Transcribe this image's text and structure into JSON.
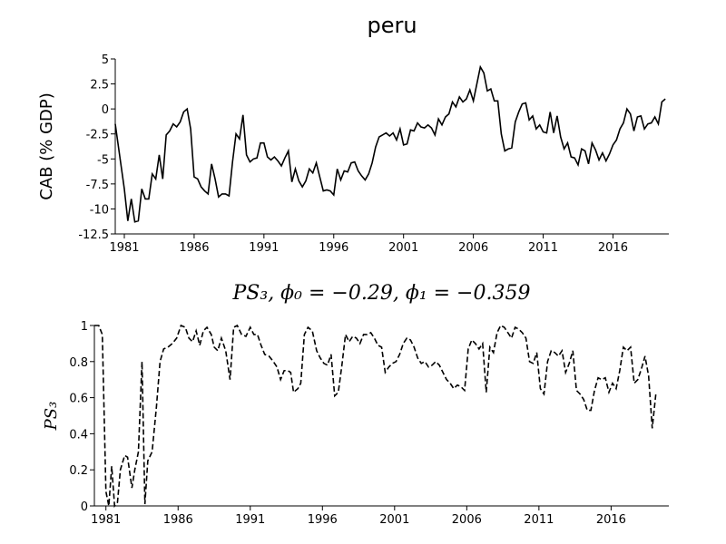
{
  "chart_data": [
    {
      "type": "line",
      "title": "peru",
      "ylabel": "CAB (% GDP)",
      "color": "#000000",
      "linestyle": "solid",
      "xlim": [
        1980.35,
        2020
      ],
      "xticks": [
        1981,
        1986,
        1991,
        1996,
        2001,
        2006,
        2011,
        2016
      ],
      "ylim": [
        -12.5,
        5
      ],
      "yticks": [
        -12.5,
        -10,
        -7.5,
        -5,
        -2.5,
        0,
        2.5,
        5
      ],
      "x": [
        1980.35,
        1980.75,
        1981,
        1981.25,
        1981.5,
        1981.75,
        1982,
        1982.25,
        1982.5,
        1982.75,
        1983,
        1983.25,
        1983.5,
        1983.75,
        1984,
        1984.25,
        1984.5,
        1984.75,
        1985,
        1985.25,
        1985.5,
        1985.75,
        1986,
        1986.25,
        1986.5,
        1986.75,
        1987,
        1987.25,
        1987.5,
        1987.75,
        1988,
        1988.25,
        1988.5,
        1988.75,
        1989,
        1989.25,
        1989.5,
        1989.75,
        1990,
        1990.25,
        1990.5,
        1990.75,
        1991,
        1991.25,
        1991.5,
        1991.75,
        1992,
        1992.25,
        1992.5,
        1992.75,
        1993,
        1993.25,
        1993.5,
        1993.75,
        1994,
        1994.25,
        1994.5,
        1994.75,
        1995,
        1995.25,
        1995.5,
        1995.75,
        1996,
        1996.25,
        1996.5,
        1996.75,
        1997,
        1997.25,
        1997.5,
        1997.75,
        1998,
        1998.25,
        1998.5,
        1998.75,
        1999,
        1999.25,
        1999.5,
        1999.75,
        2000,
        2000.25,
        2000.5,
        2000.75,
        2001,
        2001.25,
        2001.5,
        2001.75,
        2002,
        2002.25,
        2002.5,
        2002.75,
        2003,
        2003.25,
        2003.5,
        2003.75,
        2004,
        2004.25,
        2004.5,
        2004.75,
        2005,
        2005.25,
        2005.5,
        2005.75,
        2006,
        2006.25,
        2006.5,
        2006.75,
        2007,
        2007.25,
        2007.5,
        2007.75,
        2008,
        2008.25,
        2008.5,
        2008.75,
        2009,
        2009.25,
        2009.5,
        2009.75,
        2010,
        2010.25,
        2010.5,
        2010.75,
        2011,
        2011.25,
        2011.5,
        2011.75,
        2012,
        2012.25,
        2012.5,
        2012.75,
        2013,
        2013.25,
        2013.5,
        2013.75,
        2014,
        2014.25,
        2014.5,
        2014.75,
        2015,
        2015.25,
        2015.5,
        2015.75,
        2016,
        2016.25,
        2016.5,
        2016.75,
        2017,
        2017.25,
        2017.5,
        2017.75,
        2018,
        2018.25,
        2018.5,
        2018.75,
        2019,
        2019.25,
        2019.5,
        2019.75
      ],
      "values": [
        -1.5,
        -5.5,
        -8,
        -11.2,
        -9,
        -11.3,
        -11.2,
        -8,
        -9,
        -9,
        -6.5,
        -7,
        -4.6,
        -7,
        -2.6,
        -2.2,
        -1.5,
        -1.8,
        -1.3,
        -0.3,
        0,
        -2,
        -6.8,
        -7,
        -7.8,
        -8.2,
        -8.5,
        -5.5,
        -7,
        -8.8,
        -8.5,
        -8.5,
        -8.7,
        -5.3,
        -2.5,
        -3,
        -0.6,
        -4.6,
        -5.3,
        -5,
        -4.9,
        -3.4,
        -3.4,
        -4.8,
        -5.1,
        -4.8,
        -5.2,
        -5.7,
        -4.9,
        -4.2,
        -7.3,
        -6,
        -7.2,
        -7.8,
        -7.2,
        -6,
        -6.4,
        -5.4,
        -6.8,
        -8.2,
        -8.1,
        -8.2,
        -8.6,
        -6,
        -7.1,
        -6.2,
        -6.3,
        -5.4,
        -5.3,
        -6.2,
        -6.7,
        -7.1,
        -6.5,
        -5.4,
        -3.8,
        -2.8,
        -2.6,
        -2.4,
        -2.7,
        -2.4,
        -3.1,
        -2,
        -3.6,
        -3.5,
        -2.1,
        -2.2,
        -1.4,
        -1.8,
        -1.9,
        -1.6,
        -1.9,
        -2.6,
        -1,
        -1.6,
        -0.8,
        -0.5,
        0.7,
        0.2,
        1.2,
        0.7,
        1,
        1.9,
        0.8,
        2.5,
        4.2,
        3.6,
        1.8,
        2,
        0.8,
        0.8,
        -2.5,
        -4.2,
        -4,
        -3.9,
        -1.3,
        -0.3,
        0.5,
        0.6,
        -1.1,
        -0.7,
        -2,
        -1.6,
        -2.3,
        -2.4,
        -0.3,
        -2.4,
        -0.7,
        -2.8,
        -4,
        -3.4,
        -4.8,
        -4.9,
        -5.6,
        -4,
        -4.2,
        -5.5,
        -3.4,
        -4.1,
        -5.1,
        -4.4,
        -5.2,
        -4.5,
        -3.6,
        -3.1,
        -2,
        -1.4,
        0,
        -0.5,
        -2.2,
        -0.8,
        -0.7,
        -2,
        -1.5,
        -1.4,
        -0.8,
        -1.5,
        0.7,
        1
      ]
    },
    {
      "type": "line",
      "title": "PS₃, ϕ₀ = −0.29, ϕ₁ = −0.359",
      "ylabel": "PS₃",
      "color": "#000000",
      "linestyle": "dashed",
      "xlim": [
        1980.2,
        2020
      ],
      "xticks": [
        1981,
        1986,
        1991,
        1996,
        2001,
        2006,
        2011,
        2016
      ],
      "ylim": [
        0,
        1
      ],
      "yticks": [
        0,
        0.2,
        0.4,
        0.6,
        0.8,
        1
      ],
      "x": [
        1980.2,
        1980.5,
        1980.75,
        1981,
        1981.2,
        1981.4,
        1981.6,
        1981.8,
        1982,
        1982.3,
        1982.5,
        1982.8,
        1983,
        1983.25,
        1983.5,
        1983.7,
        1983.9,
        1984.2,
        1984.5,
        1984.75,
        1985,
        1985.3,
        1985.6,
        1985.9,
        1986.2,
        1986.5,
        1986.75,
        1987,
        1987.25,
        1987.5,
        1987.75,
        1988,
        1988.3,
        1988.5,
        1988.75,
        1989,
        1989.3,
        1989.6,
        1989.85,
        1990.1,
        1990.4,
        1990.7,
        1991,
        1991.25,
        1991.5,
        1991.75,
        1992,
        1992.3,
        1992.6,
        1992.85,
        1993.1,
        1993.35,
        1993.6,
        1993.8,
        1994,
        1994.3,
        1994.5,
        1994.75,
        1995,
        1995.3,
        1995.6,
        1995.85,
        1996.1,
        1996.35,
        1996.6,
        1996.85,
        1997.1,
        1997.35,
        1997.6,
        1997.85,
        1998.1,
        1998.35,
        1998.6,
        1998.85,
        1999.1,
        1999.35,
        1999.6,
        1999.85,
        2000.1,
        2000.35,
        2000.6,
        2000.85,
        2001.1,
        2001.35,
        2001.6,
        2001.85,
        2002.1,
        2002.35,
        2002.6,
        2002.85,
        2003.1,
        2003.35,
        2003.6,
        2003.85,
        2004.1,
        2004.35,
        2004.6,
        2004.85,
        2005.1,
        2005.35,
        2005.6,
        2005.85,
        2006.1,
        2006.35,
        2006.6,
        2006.85,
        2007.1,
        2007.35,
        2007.6,
        2007.85,
        2008.1,
        2008.35,
        2008.6,
        2008.85,
        2009.1,
        2009.35,
        2009.6,
        2009.85,
        2010.1,
        2010.35,
        2010.6,
        2010.85,
        2011.1,
        2011.35,
        2011.6,
        2011.85,
        2012.1,
        2012.35,
        2012.6,
        2012.85,
        2013.1,
        2013.35,
        2013.6,
        2013.85,
        2014.1,
        2014.35,
        2014.6,
        2014.85,
        2015.1,
        2015.35,
        2015.6,
        2015.85,
        2016.1,
        2016.35,
        2016.6,
        2016.85,
        2017.1,
        2017.35,
        2017.6,
        2017.85,
        2018.1,
        2018.35,
        2018.6,
        2018.85,
        2019.1
      ],
      "values": [
        1,
        1,
        0.95,
        0.08,
        0,
        0.22,
        0,
        0.02,
        0.2,
        0.28,
        0.27,
        0.1,
        0.2,
        0.3,
        0.8,
        0.01,
        0.25,
        0.3,
        0.55,
        0.8,
        0.87,
        0.88,
        0.9,
        0.93,
        1,
        0.99,
        0.93,
        0.91,
        0.97,
        0.89,
        0.97,
        0.99,
        0.95,
        0.88,
        0.86,
        0.93,
        0.86,
        0.7,
        0.99,
        1,
        0.95,
        0.94,
        0.99,
        0.95,
        0.95,
        0.89,
        0.84,
        0.83,
        0.8,
        0.77,
        0.7,
        0.75,
        0.75,
        0.74,
        0.63,
        0.65,
        0.68,
        0.95,
        0.99,
        0.97,
        0.86,
        0.82,
        0.79,
        0.78,
        0.84,
        0.61,
        0.63,
        0.78,
        0.95,
        0.91,
        0.94,
        0.93,
        0.9,
        0.95,
        0.95,
        0.96,
        0.93,
        0.89,
        0.88,
        0.74,
        0.77,
        0.79,
        0.8,
        0.84,
        0.9,
        0.93,
        0.92,
        0.88,
        0.82,
        0.79,
        0.8,
        0.77,
        0.78,
        0.8,
        0.78,
        0.74,
        0.7,
        0.68,
        0.65,
        0.67,
        0.66,
        0.64,
        0.87,
        0.92,
        0.9,
        0.87,
        0.9,
        0.63,
        0.88,
        0.85,
        0.96,
        1,
        0.99,
        0.96,
        0.93,
        0.99,
        0.98,
        0.96,
        0.93,
        0.8,
        0.79,
        0.85,
        0.65,
        0.62,
        0.8,
        0.86,
        0.85,
        0.83,
        0.86,
        0.74,
        0.79,
        0.86,
        0.64,
        0.62,
        0.59,
        0.53,
        0.53,
        0.64,
        0.71,
        0.7,
        0.71,
        0.63,
        0.68,
        0.65,
        0.75,
        0.88,
        0.86,
        0.88,
        0.68,
        0.7,
        0.76,
        0.83,
        0.72,
        0.43,
        0.62
      ]
    }
  ]
}
